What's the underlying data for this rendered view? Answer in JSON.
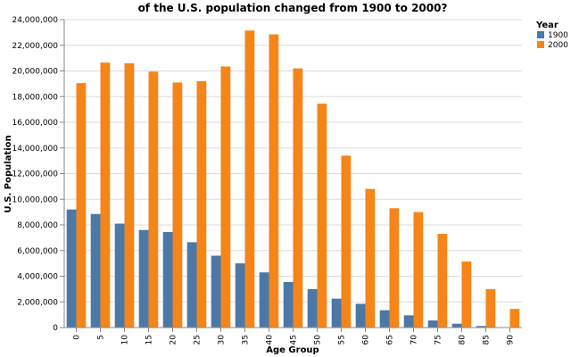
{
  "chart_data": {
    "type": "bar",
    "title_lines": [
      "of the U.S. population changed from 1900 to 2000?"
    ],
    "xlabel": "Age Group",
    "ylabel": "U.S. Population",
    "ylim": [
      0,
      24000000
    ],
    "y_ticks": [
      0,
      2000000,
      4000000,
      6000000,
      8000000,
      10000000,
      12000000,
      14000000,
      16000000,
      18000000,
      20000000,
      22000000,
      24000000
    ],
    "y_tick_labels": [
      "0",
      "2,000,000",
      "4,000,000",
      "6,000,000",
      "8,000,000",
      "10,000,000",
      "12,000,000",
      "14,000,000",
      "16,000,000",
      "18,000,000",
      "20,000,000",
      "22,000,000",
      "24,000,000"
    ],
    "categories": [
      "0",
      "5",
      "10",
      "15",
      "20",
      "25",
      "30",
      "35",
      "40",
      "45",
      "50",
      "55",
      "60",
      "65",
      "70",
      "75",
      "80",
      "85",
      "90"
    ],
    "grid": true,
    "legend": {
      "title": "Year",
      "placement": "top-right"
    },
    "series": [
      {
        "name": "1900",
        "color": "#4c78a8",
        "values": [
          9200000,
          8850000,
          8100000,
          7600000,
          7450000,
          6650000,
          5600000,
          5000000,
          4300000,
          3550000,
          3000000,
          2250000,
          1850000,
          1350000,
          950000,
          550000,
          300000,
          120000,
          30000
        ]
      },
      {
        "name": "2000",
        "color": "#f58518",
        "values": [
          19050000,
          20650000,
          20600000,
          19950000,
          19100000,
          19200000,
          20350000,
          23150000,
          22850000,
          20200000,
          17450000,
          13400000,
          10800000,
          9300000,
          9000000,
          7300000,
          5150000,
          3000000,
          1450000
        ]
      }
    ]
  }
}
